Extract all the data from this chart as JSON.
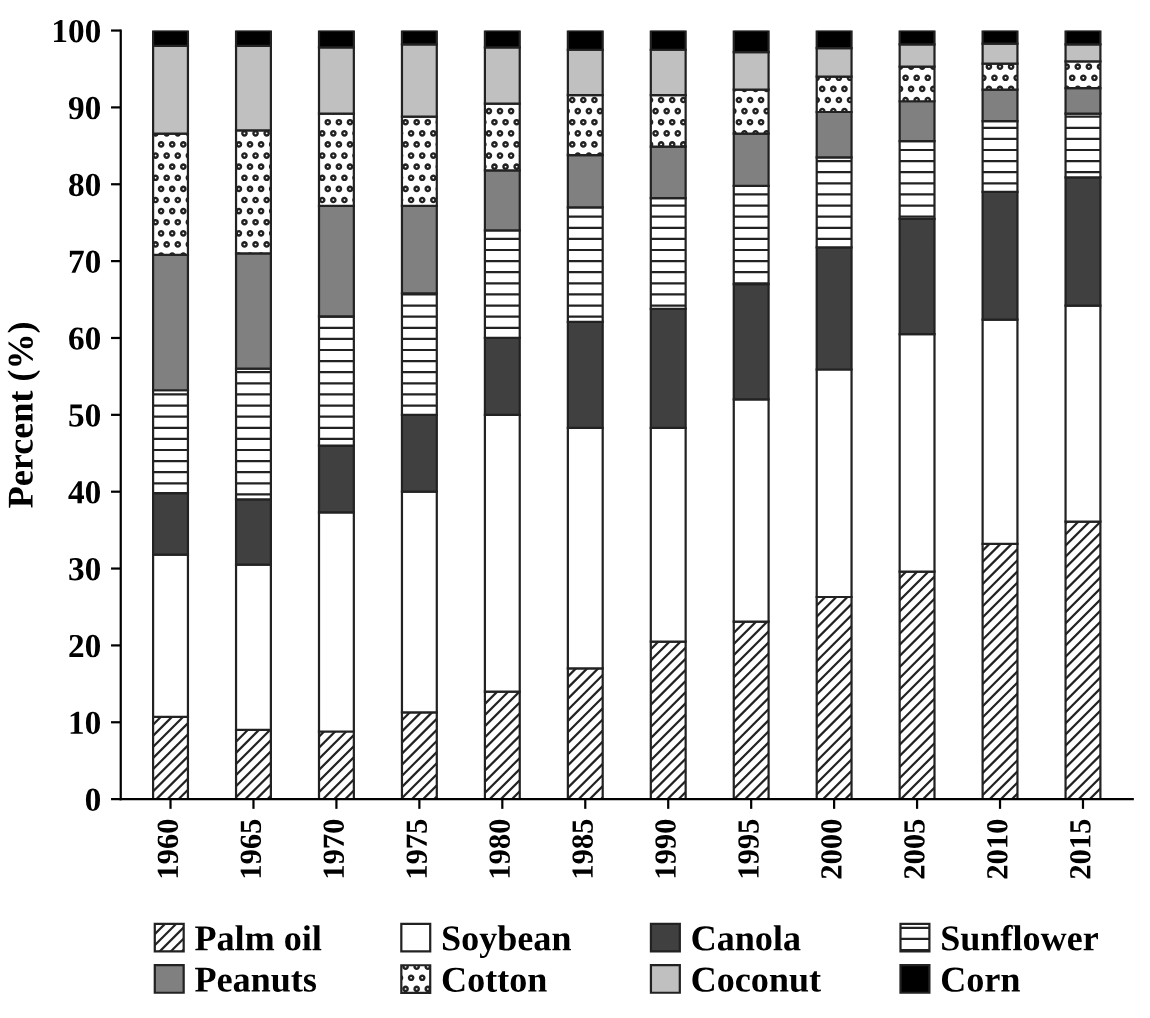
{
  "chart_data": {
    "type": "bar",
    "stacked": true,
    "ylabel": "Percent (%)",
    "categories": [
      "1960",
      "1965",
      "1970",
      "1975",
      "1980",
      "1985",
      "1990",
      "1995",
      "2000",
      "2005",
      "2010",
      "2015"
    ],
    "ylim": [
      0,
      100
    ],
    "yticks": [
      0,
      10,
      20,
      30,
      40,
      50,
      60,
      70,
      80,
      90,
      100
    ],
    "grid": false,
    "legend": "bottom",
    "series": [
      {
        "name": "Palm oil",
        "color": "#222222",
        "values": [
          10.7,
          9.0,
          8.8,
          11.3,
          14.0,
          17.0,
          20.5,
          23.1,
          26.3,
          29.6,
          33.2,
          36.1
        ]
      },
      {
        "name": "Soybean",
        "color": "#ffffff",
        "values": [
          21.1,
          21.5,
          28.5,
          28.7,
          36.0,
          31.3,
          27.8,
          28.9,
          29.6,
          30.9,
          29.2,
          28.1
        ]
      },
      {
        "name": "Canola",
        "color": "#404040",
        "values": [
          8.0,
          8.5,
          8.7,
          10.0,
          10.0,
          13.8,
          15.5,
          15.0,
          15.9,
          15.0,
          16.6,
          16.7
        ]
      },
      {
        "name": "Sunflower",
        "color": "#222222",
        "values": [
          13.4,
          17.0,
          16.8,
          15.8,
          14.0,
          14.9,
          14.4,
          12.8,
          11.7,
          10.1,
          9.2,
          8.3
        ]
      },
      {
        "name": "Peanuts",
        "color": "#808080",
        "values": [
          17.6,
          15.0,
          14.4,
          11.4,
          7.8,
          6.8,
          6.7,
          6.8,
          5.9,
          5.2,
          4.1,
          3.3
        ]
      },
      {
        "name": "Cotton",
        "color": "#222222",
        "values": [
          15.8,
          16.0,
          12.0,
          11.6,
          8.7,
          7.8,
          6.7,
          5.7,
          4.6,
          4.5,
          3.4,
          3.5
        ]
      },
      {
        "name": "Coconut",
        "color": "#c0c0c0",
        "values": [
          11.4,
          11.0,
          8.6,
          9.4,
          7.3,
          5.9,
          5.9,
          4.9,
          3.7,
          2.9,
          2.6,
          2.2
        ]
      },
      {
        "name": "Corn",
        "color": "#000000",
        "values": [
          2.0,
          2.0,
          2.2,
          1.8,
          2.2,
          2.5,
          2.5,
          2.8,
          2.3,
          1.8,
          1.7,
          1.8
        ]
      }
    ]
  }
}
